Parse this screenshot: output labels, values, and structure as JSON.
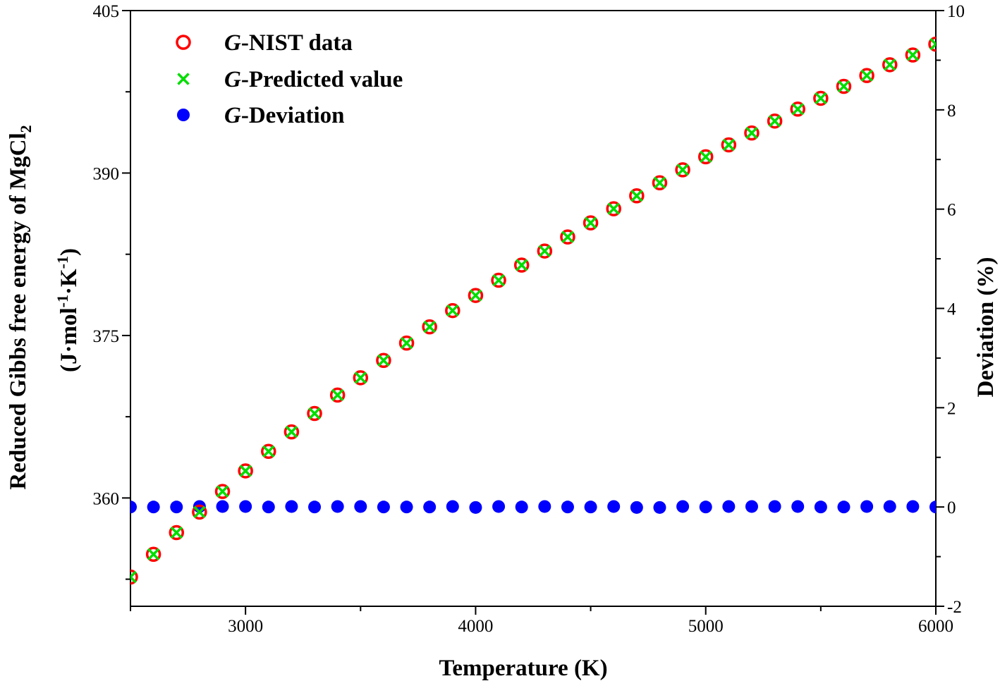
{
  "chart_data": {
    "type": "scatter",
    "x_axis": {
      "label": "Temperature (K)",
      "range": [
        2500,
        6000
      ],
      "ticks": [
        3000,
        4000,
        5000,
        6000
      ],
      "tick_labels": [
        "3000",
        "4000",
        "5000",
        "6000"
      ]
    },
    "y_axis_left": {
      "label_line1": "Reduced Gibbs free energy of  MgCl",
      "label_line1_sub": "2",
      "label_line2_parts": [
        "(J·mol",
        "-1",
        "·K",
        "-1",
        ")"
      ],
      "range": [
        350,
        405
      ],
      "ticks": [
        360,
        375,
        390,
        405
      ],
      "tick_labels": [
        "360",
        "375",
        "390",
        "405"
      ]
    },
    "y_axis_right": {
      "label": "Deviation (%)",
      "range": [
        -2,
        10
      ],
      "ticks": [
        -2,
        0,
        2,
        4,
        6,
        8,
        10
      ],
      "tick_labels": [
        "-2",
        "0",
        "2",
        "4",
        "6",
        "8",
        "10"
      ]
    },
    "x": [
      2500,
      2600,
      2700,
      2800,
      2900,
      3000,
      3100,
      3200,
      3300,
      3400,
      3500,
      3600,
      3700,
      3800,
      3900,
      4000,
      4100,
      4200,
      4300,
      4400,
      4500,
      4600,
      4700,
      4800,
      4900,
      5000,
      5100,
      5200,
      5300,
      5400,
      5500,
      5600,
      5700,
      5800,
      5900,
      6000
    ],
    "series": [
      {
        "name": "G-NIST data",
        "name_italic": "G",
        "name_rest": "-NIST data",
        "marker": "open-circle",
        "color": "#ff0000",
        "axis": "left",
        "values": [
          352.7,
          354.8,
          356.8,
          358.7,
          360.6,
          362.5,
          364.3,
          366.1,
          367.8,
          369.5,
          371.1,
          372.7,
          374.3,
          375.8,
          377.3,
          378.7,
          380.1,
          381.5,
          382.8,
          384.1,
          385.4,
          386.7,
          387.9,
          389.1,
          390.3,
          391.5,
          392.6,
          393.7,
          394.8,
          395.9,
          396.9,
          398.0,
          399.0,
          400.0,
          400.9,
          401.9
        ]
      },
      {
        "name": "G-Predicted value",
        "name_italic": "G",
        "name_rest": "-Predicted value",
        "marker": "x",
        "color": "#00dd00",
        "axis": "left",
        "values": [
          352.7,
          354.8,
          356.8,
          358.7,
          360.6,
          362.5,
          364.3,
          366.1,
          367.8,
          369.5,
          371.1,
          372.7,
          374.3,
          375.8,
          377.3,
          378.7,
          380.1,
          381.5,
          382.8,
          384.1,
          385.4,
          386.7,
          387.9,
          389.1,
          390.3,
          391.5,
          392.6,
          393.7,
          394.8,
          395.9,
          396.9,
          398.0,
          399.0,
          400.0,
          400.9,
          401.9
        ]
      },
      {
        "name": "G-Deviation",
        "name_italic": "G",
        "name_rest": "-Deviation",
        "marker": "filled-circle",
        "color": "#0000ff",
        "axis": "right",
        "values": [
          0.0,
          0.0,
          0.0,
          0.01,
          0.01,
          0.01,
          0.0,
          0.01,
          0.0,
          0.01,
          0.01,
          0.0,
          0.0,
          0.0,
          0.01,
          -0.01,
          0.01,
          0.0,
          0.01,
          0.0,
          0.0,
          0.01,
          -0.01,
          -0.01,
          0.01,
          0.0,
          0.01,
          0.01,
          0.01,
          0.01,
          0.0,
          0.0,
          0.01,
          0.01,
          0.01,
          0.0
        ]
      }
    ],
    "legend_position": "top-left",
    "grid": false
  }
}
